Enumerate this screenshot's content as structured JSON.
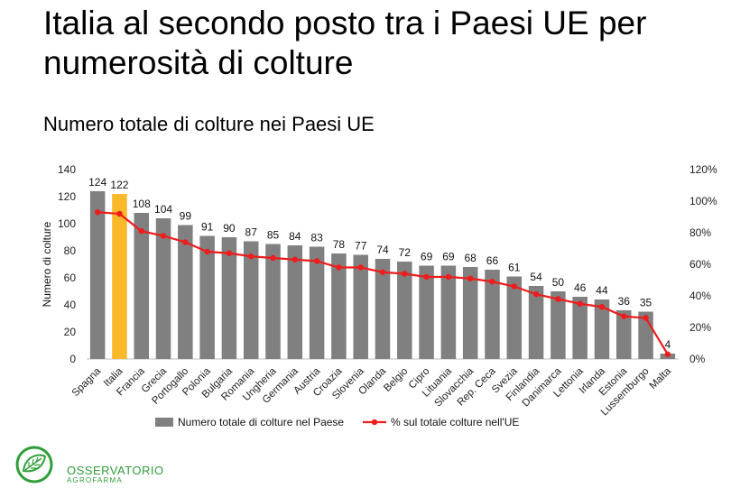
{
  "slide": {
    "title": "Italia al secondo posto tra i Paesi UE per numerosità di colture"
  },
  "logo": {
    "name": "OSSERVATORIO",
    "subtitle": "AGROFARMA",
    "color": "#2f9e3a"
  },
  "chart_data": {
    "type": "bar",
    "title": "Numero totale di colture nei Paesi UE",
    "ylabel": "Numero di colture",
    "ylim": [
      0,
      140
    ],
    "yticks": [
      0,
      20,
      40,
      60,
      80,
      100,
      120,
      140
    ],
    "y2lim": [
      0,
      120
    ],
    "y2ticks": [
      "0%",
      "20%",
      "40%",
      "60%",
      "80%",
      "100%",
      "120%"
    ],
    "categories": [
      "Spagna",
      "Italia",
      "Francia",
      "Grecia",
      "Portogallo",
      "Polonia",
      "Bulgaria",
      "Romania",
      "Ungheria",
      "Germania",
      "Austria",
      "Croazia",
      "Slovenia",
      "Olanda",
      "Belgio",
      "Cipro",
      "Lituania",
      "Slovacchia",
      "Rep. Ceca",
      "Svezia",
      "Finlandia",
      "Danimarca",
      "Lettonia",
      "Irlanda",
      "Estonia",
      "Lussemburgo",
      "Malta"
    ],
    "series": [
      {
        "name": "Numero totale di colture nel Paese",
        "kind": "bar",
        "axis": "left",
        "values": [
          124,
          122,
          108,
          104,
          99,
          91,
          90,
          87,
          85,
          84,
          83,
          78,
          77,
          74,
          72,
          69,
          69,
          68,
          66,
          61,
          54,
          50,
          46,
          44,
          36,
          35,
          4
        ],
        "color": "#808080",
        "highlight_index": 1,
        "highlight_color": "#fbb829"
      },
      {
        "name": "% sul totale colture nell'UE",
        "kind": "line",
        "axis": "right",
        "values": [
          93,
          92,
          81,
          78,
          74,
          68,
          67,
          65,
          64,
          63,
          62,
          58,
          58,
          55,
          54,
          52,
          52,
          51,
          49,
          46,
          41,
          38,
          35,
          33,
          27,
          26,
          3
        ],
        "color": "#ee1c1c"
      }
    ],
    "legend_position": "bottom",
    "grid": false
  }
}
